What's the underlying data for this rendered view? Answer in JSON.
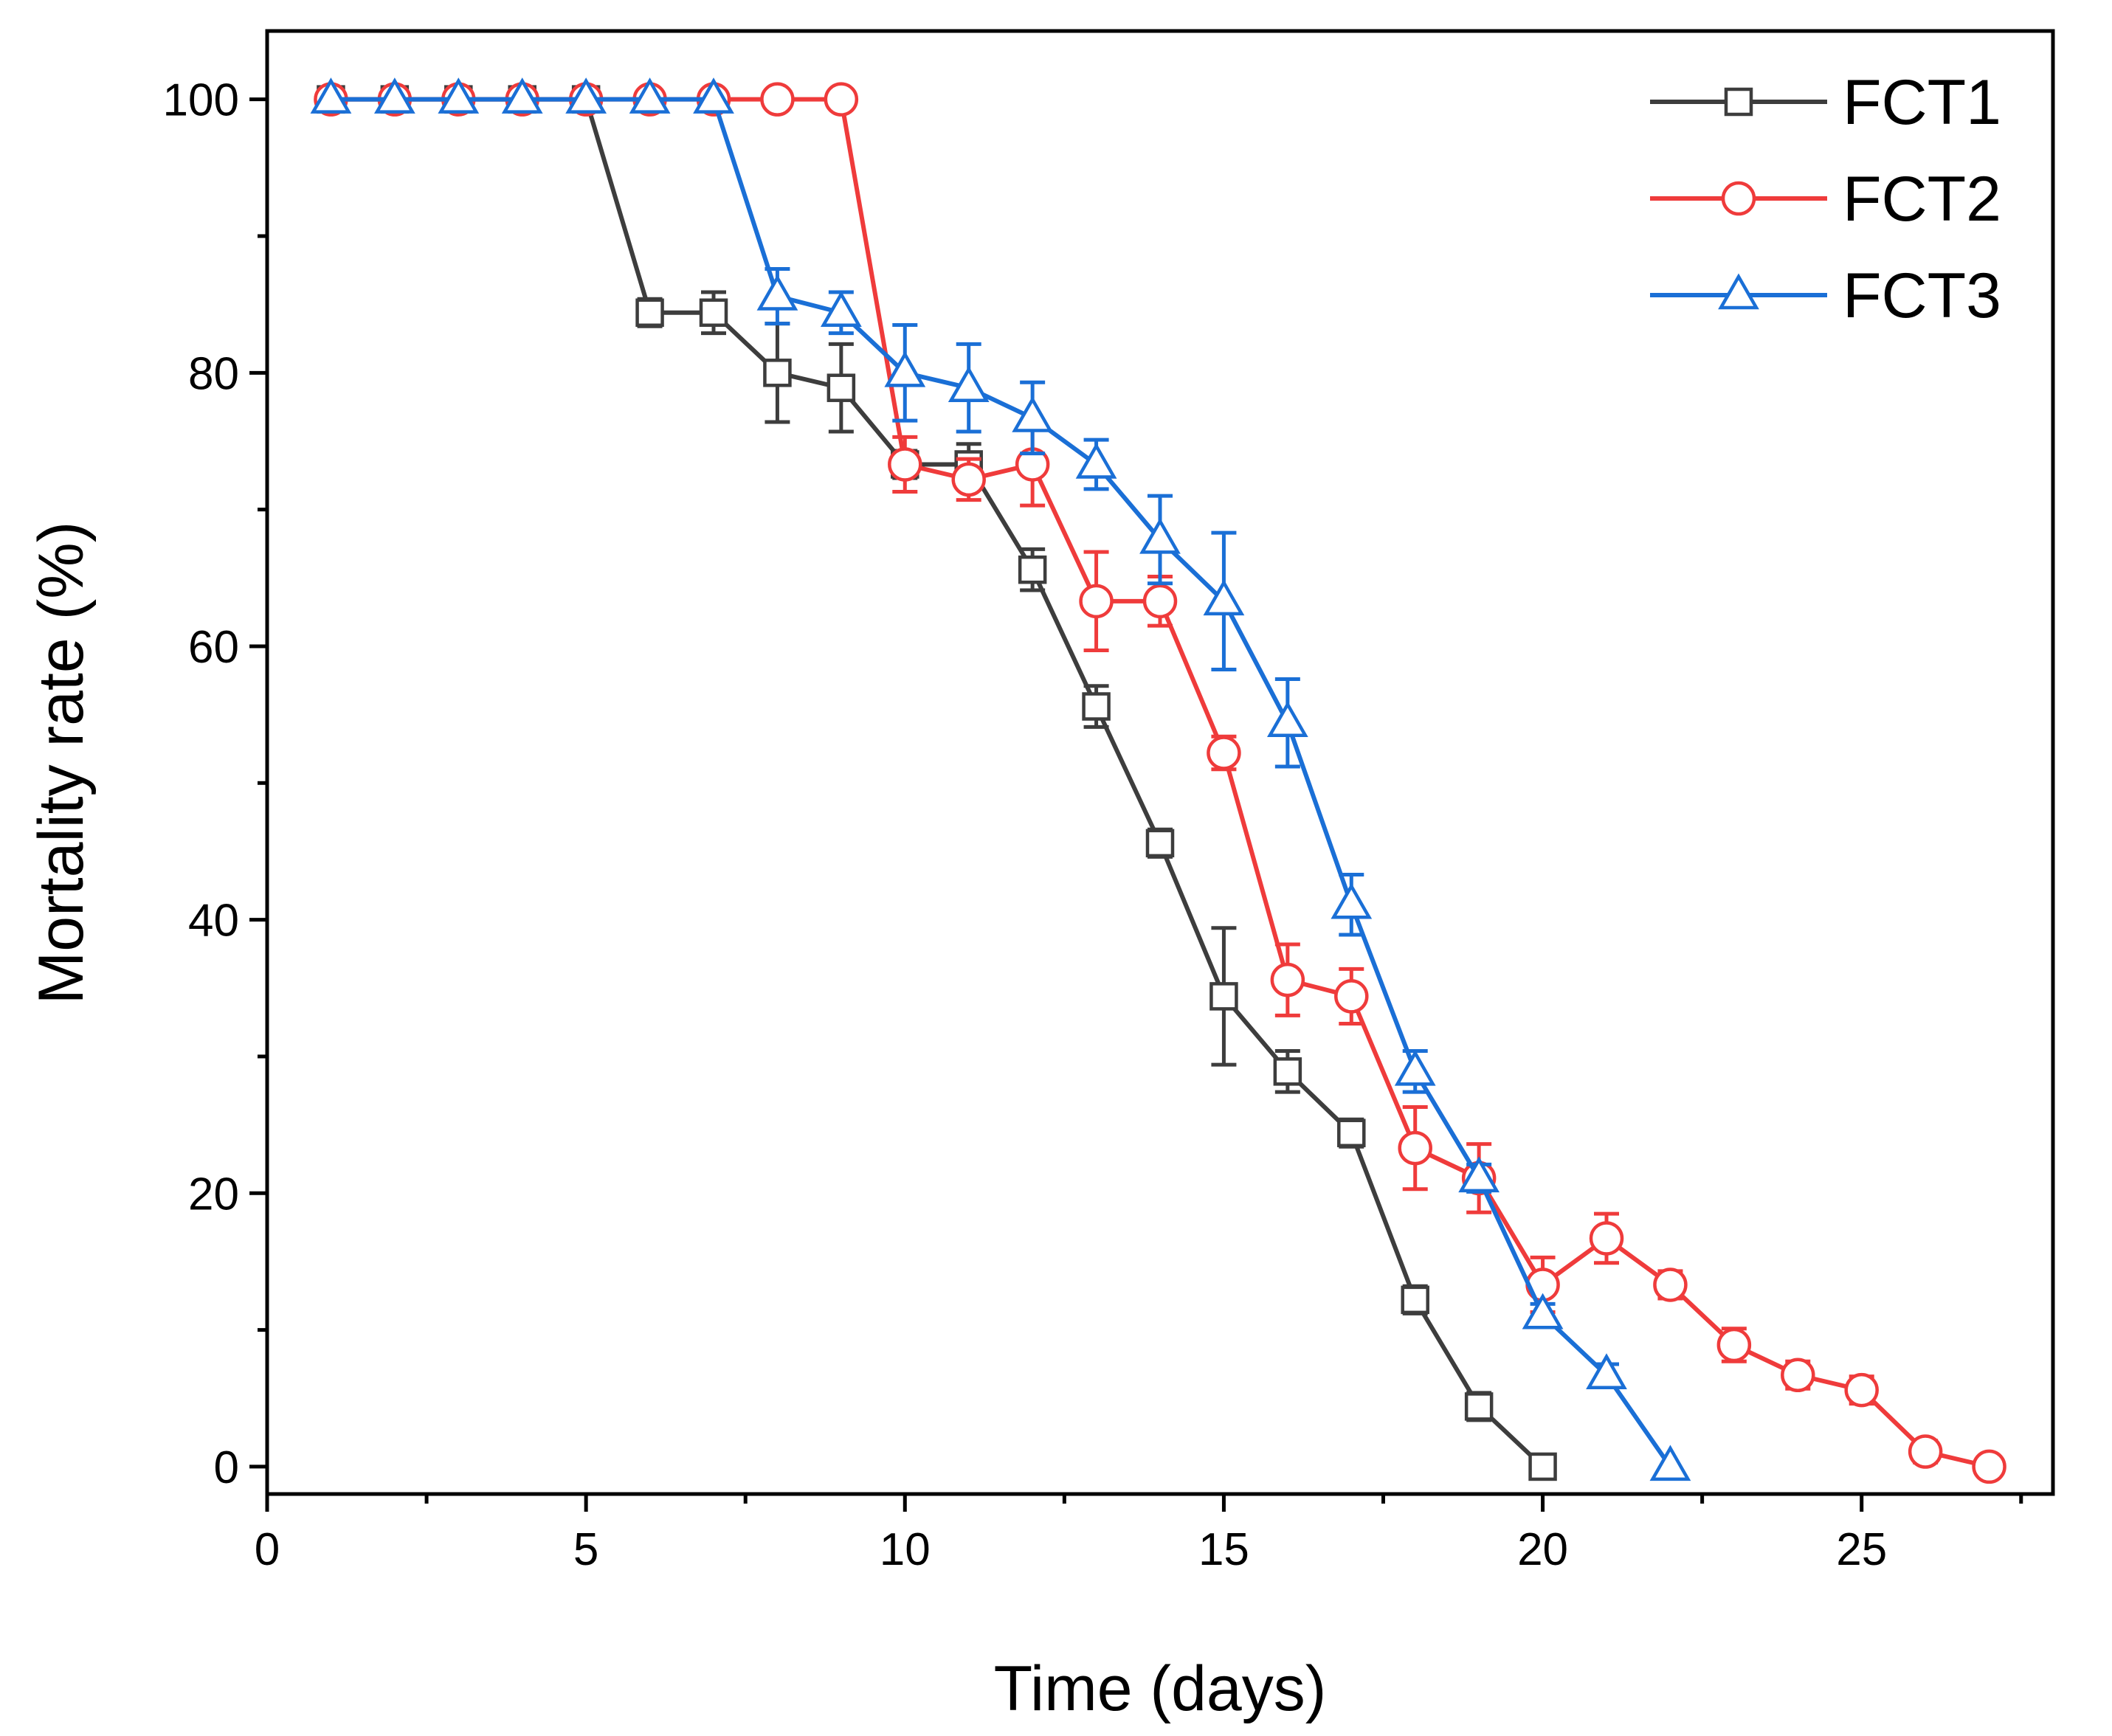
{
  "chart_data": {
    "type": "line",
    "xlabel": "Time (days)",
    "ylabel": "Mortality rate (%)",
    "xlim": [
      0,
      28
    ],
    "ylim": [
      -2,
      105
    ],
    "x_ticks": [
      0,
      5,
      10,
      15,
      20,
      25
    ],
    "x_ticks_minor": [
      2.5,
      7.5,
      12.5,
      17.5,
      22.5,
      27.5
    ],
    "y_ticks": [
      0,
      20,
      40,
      60,
      80,
      100
    ],
    "y_ticks_minor": [
      10,
      30,
      50,
      70,
      90
    ],
    "grid": false,
    "legend_position": "top-right",
    "series": [
      {
        "name": "FCT1",
        "color": "#3d3d3d",
        "marker": "square",
        "x": [
          1,
          2,
          3,
          4,
          5,
          6,
          7,
          8,
          9,
          10,
          11,
          12,
          13,
          14,
          15,
          16,
          17,
          18,
          19,
          20
        ],
        "y": [
          100,
          100,
          100,
          100,
          100,
          84.4,
          84.4,
          80,
          78.9,
          73.3,
          73.3,
          65.6,
          55.6,
          45.6,
          34.4,
          28.9,
          24.4,
          12.2,
          4.4,
          0
        ],
        "err": [
          0,
          0,
          0,
          0,
          0,
          1,
          1.5,
          3.6,
          3.2,
          1,
          1.5,
          1.5,
          1.5,
          1,
          5,
          1.5,
          1,
          1,
          1,
          0
        ]
      },
      {
        "name": "FCT2",
        "color": "#ef3b3b",
        "marker": "circle",
        "x": [
          1,
          2,
          3,
          4,
          5,
          6,
          7,
          8,
          9,
          10,
          11,
          12,
          13,
          14,
          15,
          16,
          17,
          18,
          19,
          20,
          21,
          22,
          23,
          24,
          25,
          26,
          27
        ],
        "y": [
          100,
          100,
          100,
          100,
          100,
          100,
          100,
          100,
          100,
          73.3,
          72.2,
          73.3,
          63.3,
          63.3,
          52.2,
          35.6,
          34.4,
          23.3,
          21.1,
          13.3,
          16.7,
          13.3,
          8.9,
          6.7,
          5.6,
          1.1,
          0
        ],
        "err": [
          0,
          0,
          0,
          0,
          0,
          0,
          0,
          0,
          0,
          2,
          1.5,
          3,
          3.6,
          1.8,
          1.2,
          2.6,
          2,
          3,
          2.5,
          2,
          1.8,
          1,
          1.2,
          1,
          1,
          0.8,
          0
        ]
      },
      {
        "name": "FCT3",
        "color": "#1a6fd6",
        "marker": "triangle",
        "x": [
          1,
          2,
          3,
          4,
          5,
          6,
          7,
          8,
          9,
          10,
          11,
          12,
          13,
          14,
          15,
          16,
          17,
          18,
          19,
          20,
          21,
          22
        ],
        "y": [
          100,
          100,
          100,
          100,
          100,
          100,
          100,
          85.6,
          84.4,
          80,
          78.9,
          76.7,
          73.3,
          67.8,
          63.3,
          54.4,
          41.1,
          28.9,
          21.1,
          11.1,
          6.7,
          0
        ],
        "err": [
          0,
          0,
          0,
          0,
          0,
          0,
          0,
          2,
          1.5,
          3.5,
          3.2,
          2.6,
          1.8,
          3.2,
          5,
          3.2,
          2.2,
          1.5,
          1,
          0.8,
          0.8,
          0
        ]
      }
    ]
  }
}
